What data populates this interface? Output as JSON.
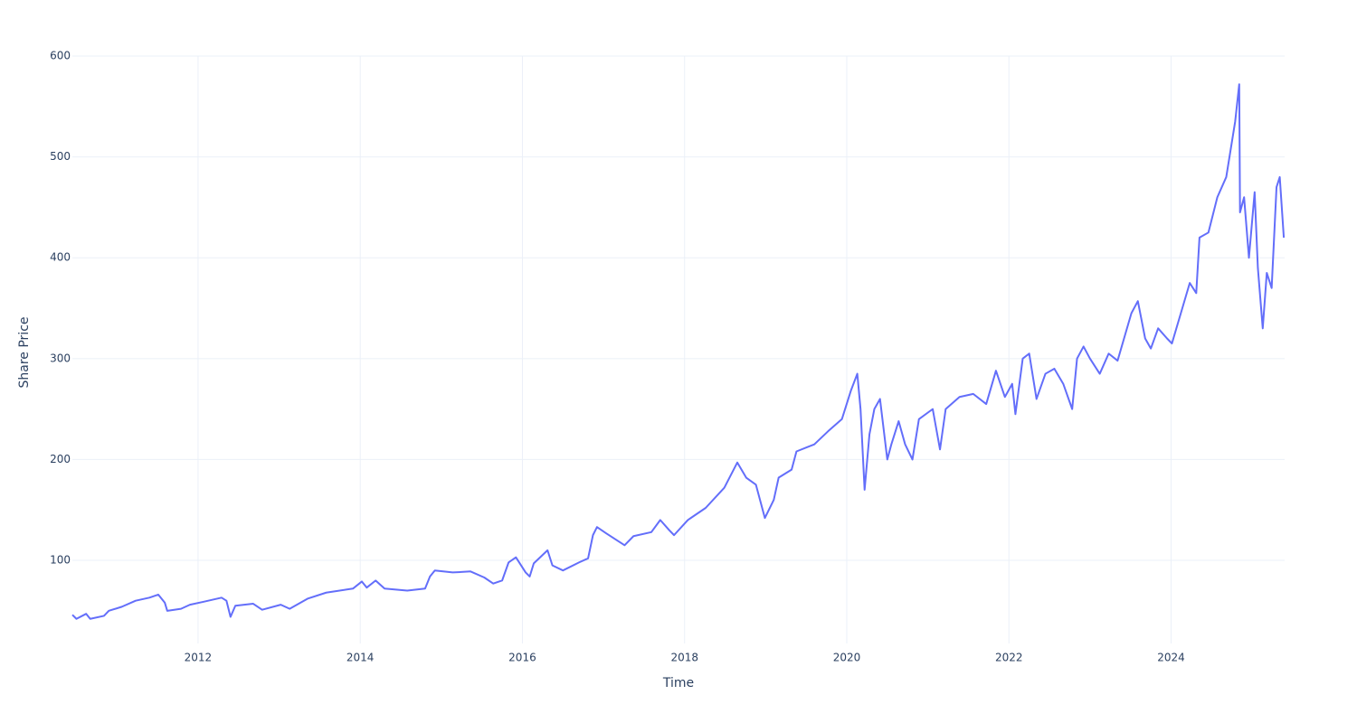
{
  "chart_data": {
    "type": "line",
    "x_label": "Time",
    "y_label": "Share Price",
    "x": [
      2010.45,
      2010.5,
      2010.62,
      2010.67,
      2010.84,
      2010.9,
      2011.06,
      2011.23,
      2011.4,
      2011.51,
      2011.59,
      2011.62,
      2011.79,
      2011.9,
      2012.07,
      2012.29,
      2012.35,
      2012.4,
      2012.46,
      2012.68,
      2012.79,
      2013.02,
      2013.13,
      2013.35,
      2013.58,
      2013.91,
      2014.02,
      2014.08,
      2014.19,
      2014.3,
      2014.58,
      2014.8,
      2014.86,
      2014.92,
      2015.14,
      2015.36,
      2015.53,
      2015.64,
      2015.75,
      2015.83,
      2015.92,
      2016.04,
      2016.09,
      2016.14,
      2016.31,
      2016.37,
      2016.5,
      2016.7,
      2016.81,
      2016.87,
      2016.92,
      2017.03,
      2017.26,
      2017.37,
      2017.59,
      2017.7,
      2017.81,
      2017.87,
      2018.04,
      2018.26,
      2018.49,
      2018.65,
      2018.76,
      2018.88,
      2018.99,
      2019.1,
      2019.16,
      2019.32,
      2019.38,
      2019.6,
      2019.77,
      2019.94,
      2020.05,
      2020.13,
      2020.17,
      2020.22,
      2020.28,
      2020.34,
      2020.41,
      2020.5,
      2020.55,
      2020.64,
      2020.72,
      2020.81,
      2020.89,
      2021.06,
      2021.15,
      2021.22,
      2021.39,
      2021.56,
      2021.72,
      2021.84,
      2021.95,
      2022.04,
      2022.08,
      2022.17,
      2022.25,
      2022.34,
      2022.45,
      2022.56,
      2022.67,
      2022.78,
      2022.84,
      2022.92,
      2023.0,
      2023.12,
      2023.23,
      2023.34,
      2023.51,
      2023.59,
      2023.68,
      2023.75,
      2023.84,
      2023.95,
      2024.01,
      2024.12,
      2024.23,
      2024.31,
      2024.35,
      2024.46,
      2024.57,
      2024.68,
      2024.79,
      2024.84,
      2024.85,
      2024.9,
      2024.96,
      2025.03,
      2025.07,
      2025.13,
      2025.18,
      2025.24,
      2025.3,
      2025.34,
      2025.39
    ],
    "values": [
      46,
      42,
      47,
      42,
      45,
      50,
      54,
      60,
      63,
      66,
      58,
      50,
      52,
      56,
      59,
      63,
      60,
      44,
      55,
      57,
      51,
      56,
      52,
      62,
      68,
      72,
      79,
      73,
      80,
      72,
      70,
      72,
      84,
      90,
      88,
      89,
      83,
      77,
      80,
      98,
      103,
      88,
      84,
      97,
      110,
      95,
      90,
      98,
      102,
      125,
      133,
      127,
      115,
      124,
      128,
      140,
      130,
      125,
      140,
      152,
      172,
      197,
      182,
      175,
      142,
      160,
      182,
      190,
      208,
      215,
      228,
      240,
      268,
      285,
      250,
      170,
      225,
      250,
      260,
      200,
      215,
      238,
      215,
      200,
      240,
      250,
      210,
      250,
      262,
      265,
      255,
      288,
      262,
      275,
      245,
      300,
      305,
      260,
      285,
      290,
      275,
      250,
      300,
      312,
      300,
      285,
      305,
      298,
      345,
      357,
      320,
      310,
      330,
      320,
      315,
      345,
      375,
      365,
      420,
      425,
      460,
      480,
      535,
      572,
      445,
      460,
      400,
      465,
      390,
      330,
      385,
      370,
      470,
      480,
      420
    ],
    "color": "#636efa",
    "xlim": [
      2010.45,
      2025.4
    ],
    "xticks": [
      2012,
      2014,
      2016,
      2018,
      2020,
      2022,
      2024
    ],
    "ylim": [
      17.6,
      600
    ],
    "yticks": [
      100,
      200,
      300,
      400,
      500,
      600
    ],
    "grid": true
  }
}
